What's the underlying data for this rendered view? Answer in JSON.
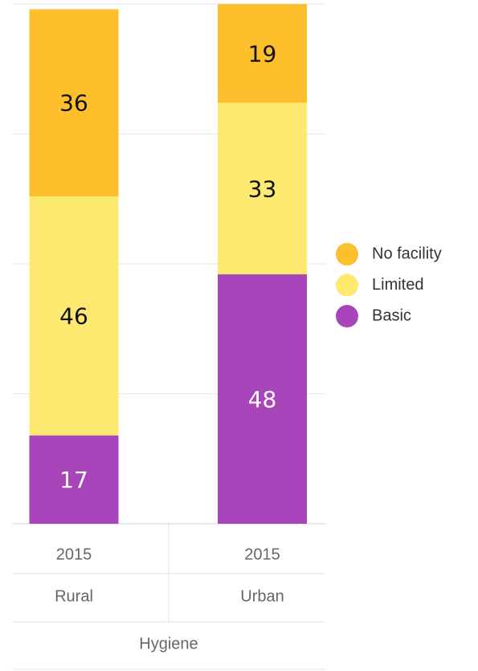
{
  "chart_data": {
    "type": "stacked_bar",
    "categories": [
      "Rural",
      "Urban"
    ],
    "years": [
      "2015",
      "2015"
    ],
    "group_label": "Hygiene",
    "series": [
      {
        "name": "No facility",
        "color": "#fdbf2b",
        "values": [
          36,
          19
        ]
      },
      {
        "name": "Limited",
        "color": "#fde96f",
        "values": [
          46,
          33
        ]
      },
      {
        "name": "Basic",
        "color": "#a845bb",
        "values": [
          17,
          48
        ]
      }
    ],
    "ylim": [
      0,
      100
    ],
    "yticks": [
      0,
      25,
      50,
      75,
      100
    ],
    "grid": true,
    "legend": "right"
  }
}
